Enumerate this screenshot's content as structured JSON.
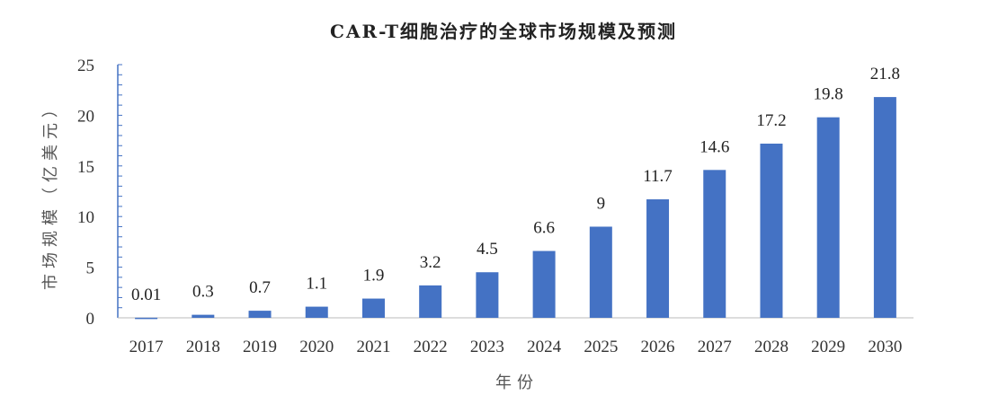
{
  "chart_data": {
    "type": "bar",
    "title": "CAR-T细胞治疗的全球市场规模及预测",
    "xlabel": "年份",
    "ylabel": "市场规模（亿美元）",
    "categories": [
      "2017",
      "2018",
      "2019",
      "2020",
      "2021",
      "2022",
      "2023",
      "2024",
      "2025",
      "2026",
      "2027",
      "2028",
      "2029",
      "2030"
    ],
    "values": [
      0.01,
      0.3,
      0.7,
      1.1,
      1.9,
      3.2,
      4.5,
      6.6,
      9,
      11.7,
      14.6,
      17.2,
      19.8,
      21.8
    ],
    "data_labels": [
      "0.01",
      "0.3",
      "0.7",
      "1.1",
      "1.9",
      "3.2",
      "4.5",
      "6.6",
      "9",
      "11.7",
      "14.6",
      "17.2",
      "19.8",
      "21.8"
    ],
    "ylim": [
      0,
      25
    ],
    "yticks": [
      "0",
      "5",
      "10",
      "15",
      "20",
      "25"
    ],
    "grid": false,
    "legend": "none",
    "bar_color": "#4472C4"
  }
}
